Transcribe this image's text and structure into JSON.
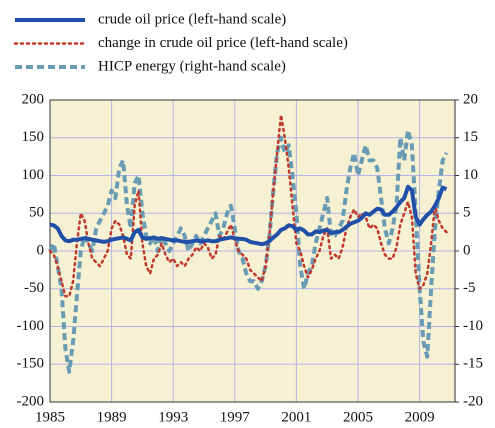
{
  "chart_data": {
    "type": "line",
    "x": [
      1985,
      1985.25,
      1985.5,
      1985.75,
      1986,
      1986.25,
      1986.5,
      1986.75,
      1987,
      1987.25,
      1987.5,
      1987.75,
      1988,
      1988.25,
      1988.5,
      1988.75,
      1989,
      1989.25,
      1989.5,
      1989.75,
      1990,
      1990.25,
      1990.5,
      1990.75,
      1991,
      1991.25,
      1991.5,
      1991.75,
      1992,
      1992.25,
      1992.5,
      1992.75,
      1993,
      1993.25,
      1993.5,
      1993.75,
      1994,
      1994.25,
      1994.5,
      1994.75,
      1995,
      1995.25,
      1995.5,
      1995.75,
      1996,
      1996.25,
      1996.5,
      1996.75,
      1997,
      1997.25,
      1997.5,
      1997.75,
      1998,
      1998.25,
      1998.5,
      1998.75,
      1999,
      1999.25,
      1999.5,
      1999.75,
      2000,
      2000.25,
      2000.5,
      2000.75,
      2001,
      2001.25,
      2001.5,
      2001.75,
      2002,
      2002.25,
      2002.5,
      2002.75,
      2003,
      2003.25,
      2003.5,
      2003.75,
      2004,
      2004.25,
      2004.5,
      2004.75,
      2005,
      2005.25,
      2005.5,
      2005.75,
      2006,
      2006.25,
      2006.5,
      2006.75,
      2007,
      2007.25,
      2007.5,
      2007.75,
      2008,
      2008.25,
      2008.5,
      2008.75,
      2009,
      2009.25,
      2009.5,
      2009.75,
      2010,
      2010.25,
      2010.5,
      2010.75
    ],
    "series": [
      {
        "name": "crude oil price (left-hand scale)",
        "color": "#1f4fa8",
        "style": "solid",
        "values": [
          35,
          34,
          30,
          20,
          14,
          13,
          15,
          15,
          16,
          17,
          16,
          15,
          14,
          13,
          12,
          13,
          15,
          16,
          17,
          18,
          16,
          14,
          25,
          28,
          18,
          16,
          17,
          18,
          16,
          17,
          16,
          15,
          14,
          14,
          13,
          12,
          12,
          13,
          14,
          13,
          13,
          14,
          13,
          13,
          15,
          16,
          17,
          18,
          17,
          16,
          16,
          15,
          12,
          11,
          10,
          9,
          10,
          13,
          18,
          22,
          28,
          30,
          34,
          33,
          28,
          30,
          27,
          22,
          22,
          26,
          25,
          27,
          28,
          24,
          25,
          25,
          28,
          32,
          36,
          38,
          40,
          44,
          50,
          48,
          52,
          56,
          55,
          48,
          48,
          52,
          58,
          65,
          70,
          85,
          80,
          45,
          35,
          42,
          48,
          52,
          60,
          70,
          84,
          82
        ]
      },
      {
        "name": "change in crude oil price (left-hand scale)",
        "color": "#c0392b",
        "style": "dotted",
        "values": [
          0,
          -5,
          -20,
          -40,
          -60,
          -60,
          -40,
          10,
          50,
          40,
          10,
          -10,
          -15,
          -20,
          -10,
          0,
          30,
          40,
          35,
          20,
          -5,
          -10,
          60,
          80,
          10,
          -20,
          -30,
          -10,
          -5,
          10,
          -5,
          -15,
          -10,
          -20,
          -15,
          -20,
          -10,
          -5,
          5,
          0,
          10,
          5,
          -10,
          -5,
          20,
          15,
          25,
          35,
          15,
          0,
          -5,
          -10,
          -25,
          -30,
          -35,
          -40,
          -20,
          20,
          80,
          130,
          180,
          150,
          110,
          60,
          10,
          0,
          -20,
          -35,
          -25,
          -10,
          0,
          20,
          30,
          -10,
          -5,
          -10,
          5,
          30,
          45,
          55,
          45,
          50,
          45,
          30,
          35,
          30,
          10,
          -5,
          -10,
          -10,
          5,
          35,
          50,
          65,
          45,
          -30,
          -50,
          -45,
          -30,
          10,
          60,
          40,
          30,
          25
        ]
      },
      {
        "name": "HICP energy (right-hand scale)",
        "color": "#6a9bb5",
        "style": "dashed",
        "axis": "y2",
        "values": [
          0,
          1,
          -2,
          -5,
          -13,
          -16,
          -12,
          -6,
          0,
          2,
          1,
          0,
          3,
          4,
          5,
          6,
          8,
          7,
          11,
          12,
          6,
          3,
          9,
          10,
          5,
          2,
          1,
          2,
          0,
          2,
          1,
          0,
          1,
          2,
          3,
          2,
          0,
          1,
          2,
          1,
          2,
          3,
          4,
          5,
          2,
          3,
          5,
          6,
          3,
          0,
          -1,
          -3,
          -4,
          -4,
          -5,
          -4,
          -2,
          2,
          8,
          13,
          15,
          13,
          14,
          10,
          5,
          -2,
          -5,
          -3,
          -2,
          1,
          3,
          5,
          7,
          2,
          2,
          3,
          4,
          8,
          11,
          13,
          10,
          12,
          14,
          12,
          12,
          11,
          7,
          3,
          1,
          3,
          6,
          15,
          12,
          16,
          14,
          5,
          -5,
          -12,
          -14,
          -5,
          3,
          8,
          12,
          13
        ]
      }
    ],
    "xlim": [
      1985,
      2011.3
    ],
    "xticks": [
      1985,
      1989,
      1993,
      1997,
      2001,
      2005,
      2009
    ],
    "ylim": [
      -200,
      200
    ],
    "yticks": [
      -200,
      -150,
      -100,
      -50,
      0,
      50,
      100,
      150,
      200
    ],
    "y2lim": [
      -20,
      20
    ],
    "y2ticks": [
      -20,
      -15,
      -10,
      -5,
      0,
      5,
      10,
      15,
      20
    ],
    "grid": true
  }
}
